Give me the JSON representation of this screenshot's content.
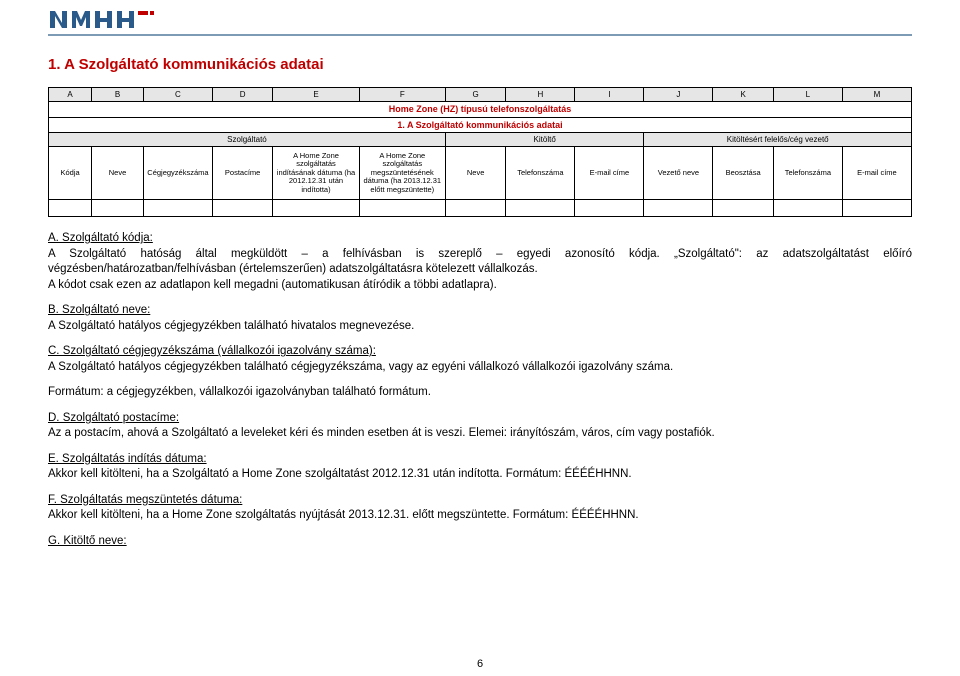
{
  "logo_colors": {
    "blue": "#2a5a8a",
    "accent": "#c00000"
  },
  "title": "1. A Szolgáltató kommunikációs adatai",
  "letters": [
    "A",
    "B",
    "C",
    "D",
    "E",
    "F",
    "G",
    "H",
    "I",
    "J",
    "K",
    "L",
    "M"
  ],
  "row2_title": "Home Zone (HZ) típusú telefonszolgáltatás",
  "row3_title": "1. A Szolgáltató kommunikációs adatai",
  "group_labels": {
    "provider": "Szolgáltató",
    "filler": "Kitöltő",
    "responsible": "Kitöltésért felelős/cég vezető"
  },
  "col_heads": [
    "Kódja",
    "Neve",
    "Cégjegyzékszáma",
    "Postacíme",
    "A Home Zone szolgáltatás indításának dátuma (ha 2012.12.31 után indította)",
    "A Home Zone szolgáltatás megszüntetésének dátuma (ha 2013.12.31 előtt megszüntette)",
    "Neve",
    "Telefonszáma",
    "E-mail címe",
    "Vezető neve",
    "Beosztása",
    "Telefonszáma",
    "E-mail címe"
  ],
  "paragraphs": {
    "a_head": "A. Szolgáltató kódja:",
    "a_body1": "A Szolgáltató hatóság által megküldött – a felhívásban is szereplő – egyedi azonosító kódja. „Szolgáltató\": az adatszolgáltatást előíró végzésben/határozatban/felhívásban (értelemszerűen) adatszolgáltatásra kötelezett vállalkozás.",
    "a_body2": "A kódot csak ezen az adatlapon kell megadni (automatikusan átíródik a többi adatlapra).",
    "b_head": "B. Szolgáltató neve:",
    "b_body": "A Szolgáltató hatályos cégjegyzékben található hivatalos megnevezése.",
    "c_head": "C. Szolgáltató cégjegyzékszáma (vállalkozói igazolvány száma):",
    "c_body": "A Szolgáltató hatályos cégjegyzékben található cégjegyzékszáma, vagy az egyéni vállalkozó vállalkozói igazolvány száma.",
    "c_fmt": "Formátum: a cégjegyzékben, vállalkozói igazolványban található formátum.",
    "d_head": "D. Szolgáltató postacíme:",
    "d_body": "Az a postacím, ahová a Szolgáltató a leveleket kéri és minden esetben át is veszi. Elemei: irányítószám, város, cím vagy postafiók.",
    "e_head": "E. Szolgáltatás indítás dátuma:",
    "e_body": "Akkor kell kitölteni, ha a Szolgáltató a Home Zone szolgáltatást 2012.12.31 után indította. Formátum: ÉÉÉÉHHNN.",
    "f_head": "F. Szolgáltatás megszüntetés dátuma:",
    "f_body": "Akkor kell kitölteni, ha a Home Zone szolgáltatás nyújtását 2013.12.31. előtt megszüntette. Formátum: ÉÉÉÉHHNN.",
    "g_head": "G. Kitöltő neve:"
  },
  "page_number": "6",
  "col_widths_pct": [
    5,
    6,
    8,
    7,
    10,
    10,
    7,
    8,
    8,
    8,
    7,
    8,
    8
  ]
}
